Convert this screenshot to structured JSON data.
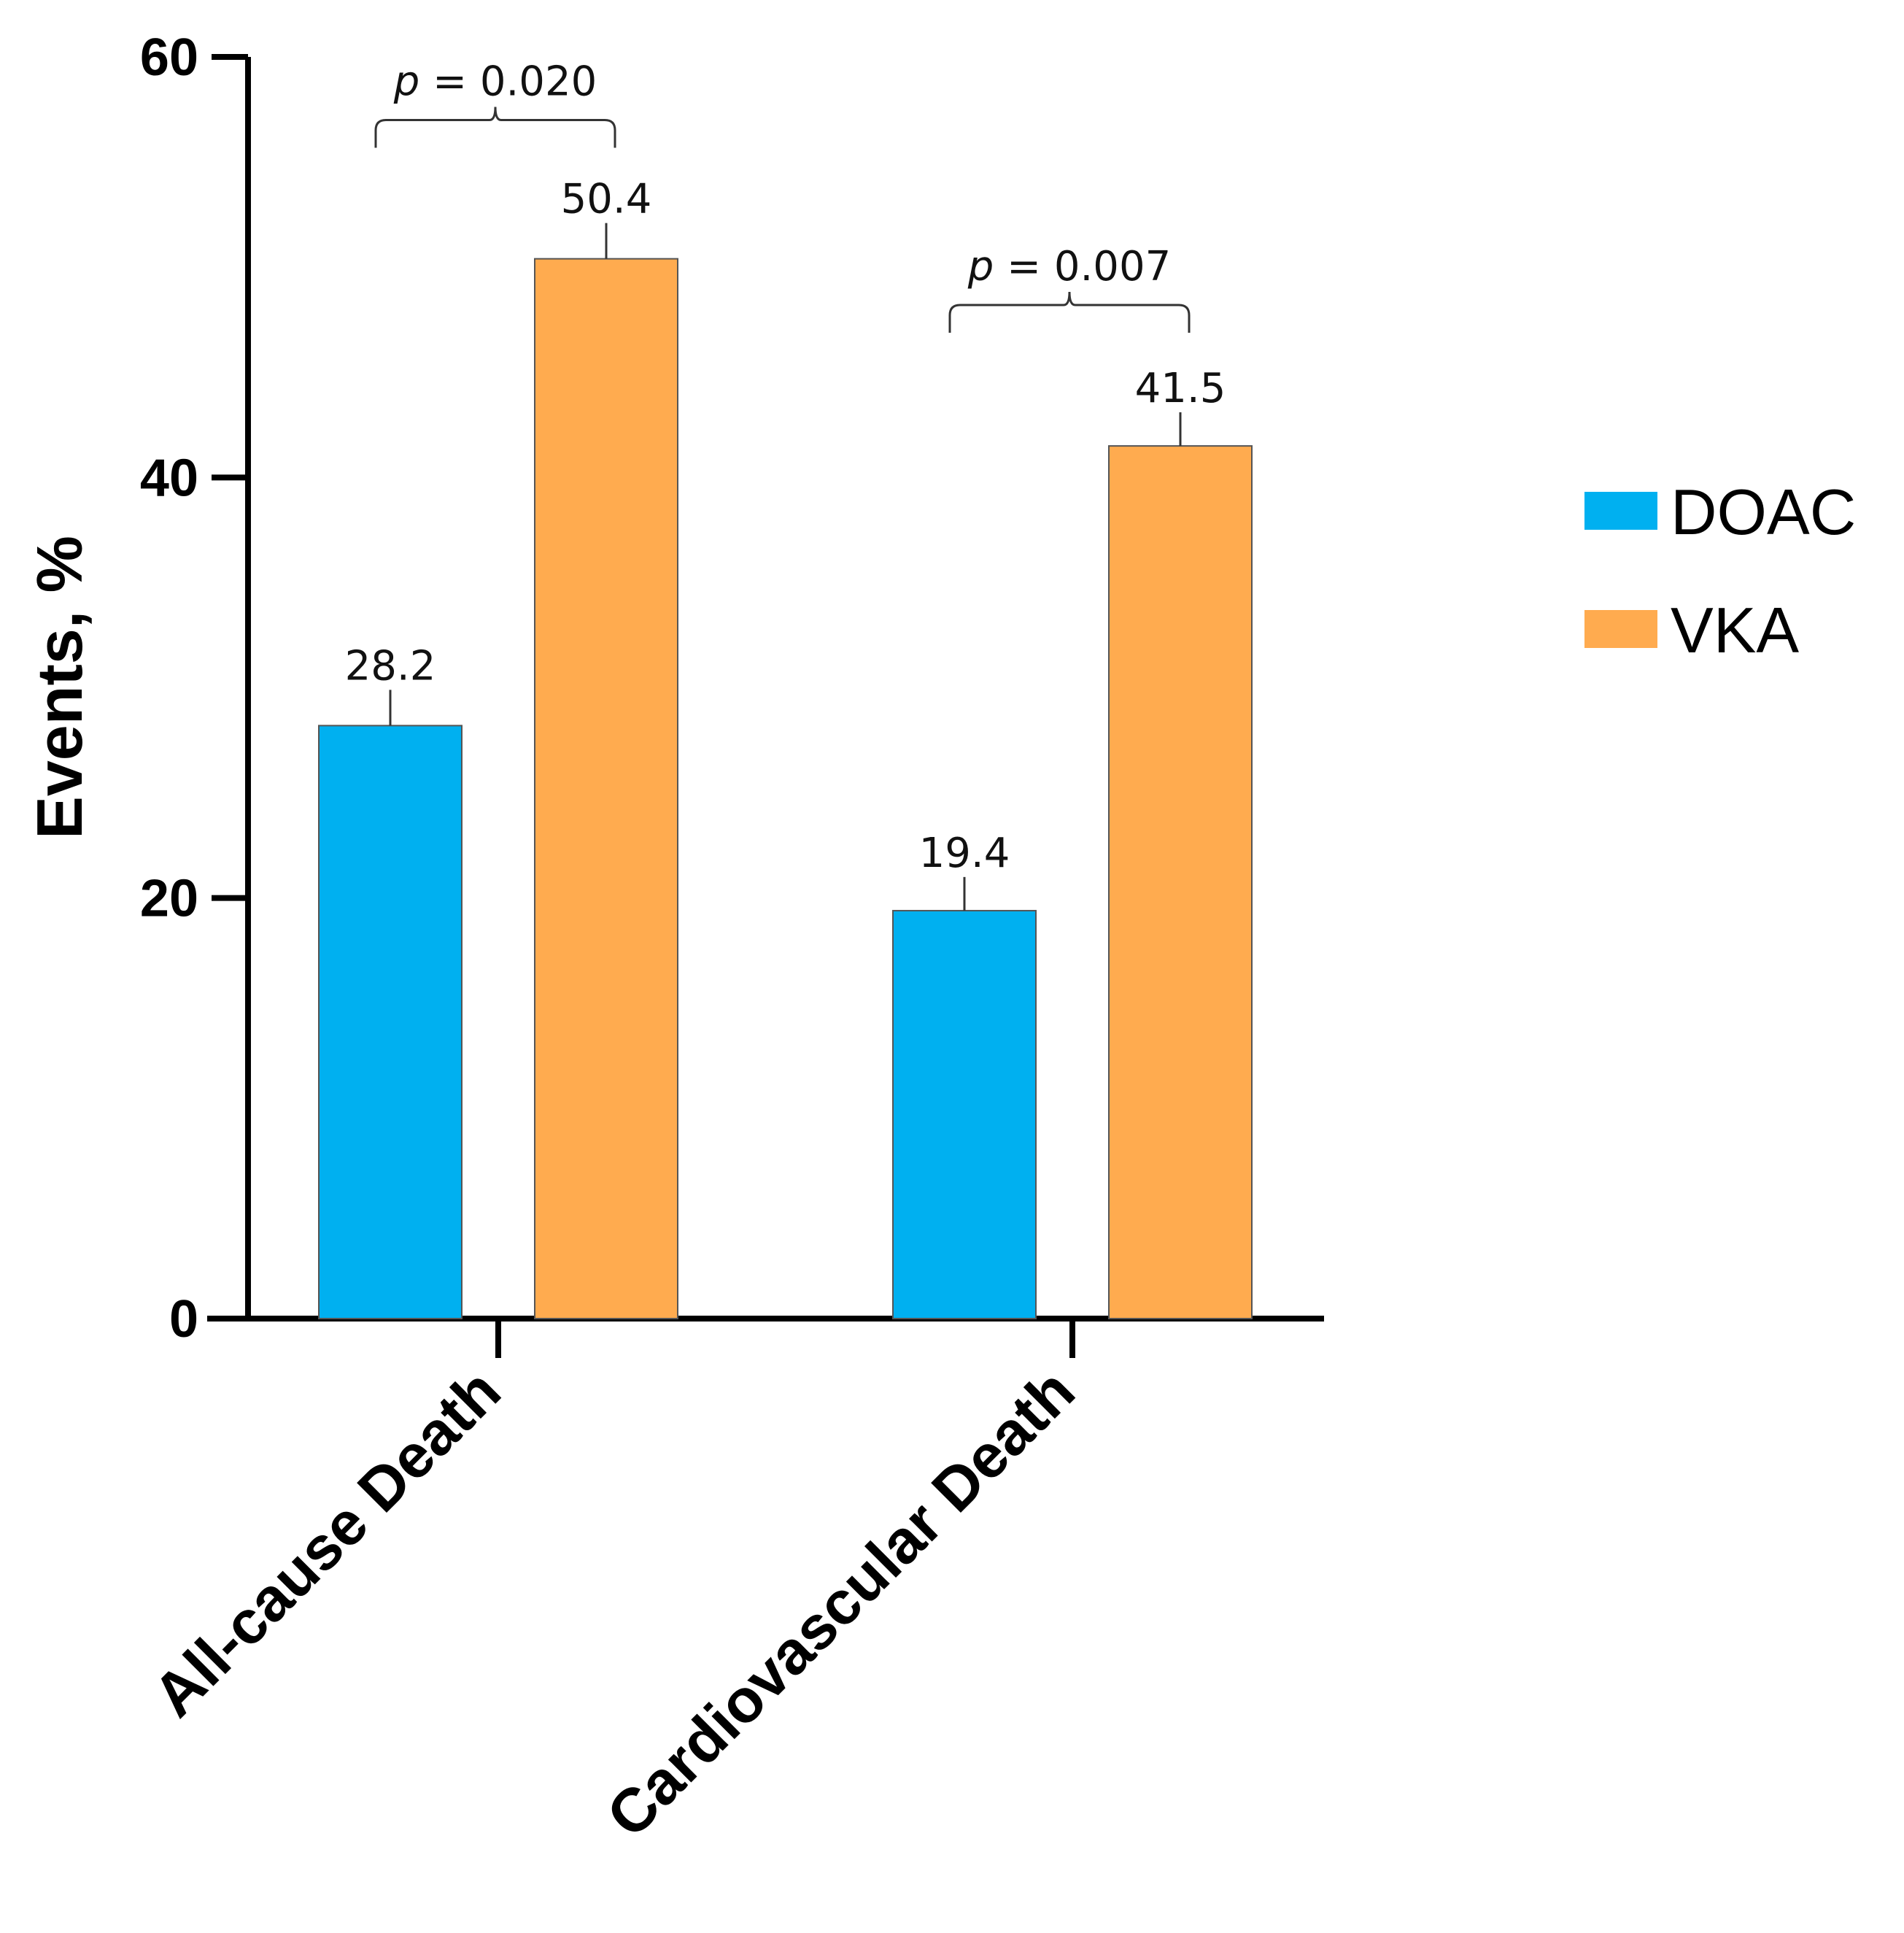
{
  "chart_data": {
    "type": "bar",
    "title": "",
    "xlabel": "",
    "ylabel": "Events, %",
    "ylim": [
      0,
      60
    ],
    "yticks": [
      0,
      20,
      40,
      60
    ],
    "grid": false,
    "legend_position": "right",
    "categories": [
      "All-cause Death",
      "Cardiovascular Death"
    ],
    "series": [
      {
        "name": "DOAC",
        "color": "#00b0f0",
        "values": [
          28.2,
          19.4
        ],
        "error_upper": [
          29.9,
          21.0
        ]
      },
      {
        "name": "VKA",
        "color": "#ffab4f",
        "values": [
          50.4,
          41.5
        ],
        "error_upper": [
          52.1,
          43.1
        ]
      }
    ],
    "data_labels": [
      "28.2",
      "19.4",
      "50.4",
      "41.5"
    ],
    "annotations": [
      {
        "category": "All-cause Death",
        "p_symbol": "p",
        "p_text": "= 0.020",
        "bracket_top": 57.0
      },
      {
        "category": "Cardiovascular Death",
        "p_symbol": "p",
        "p_text": "= 0.007",
        "bracket_top": 48.2
      }
    ]
  }
}
